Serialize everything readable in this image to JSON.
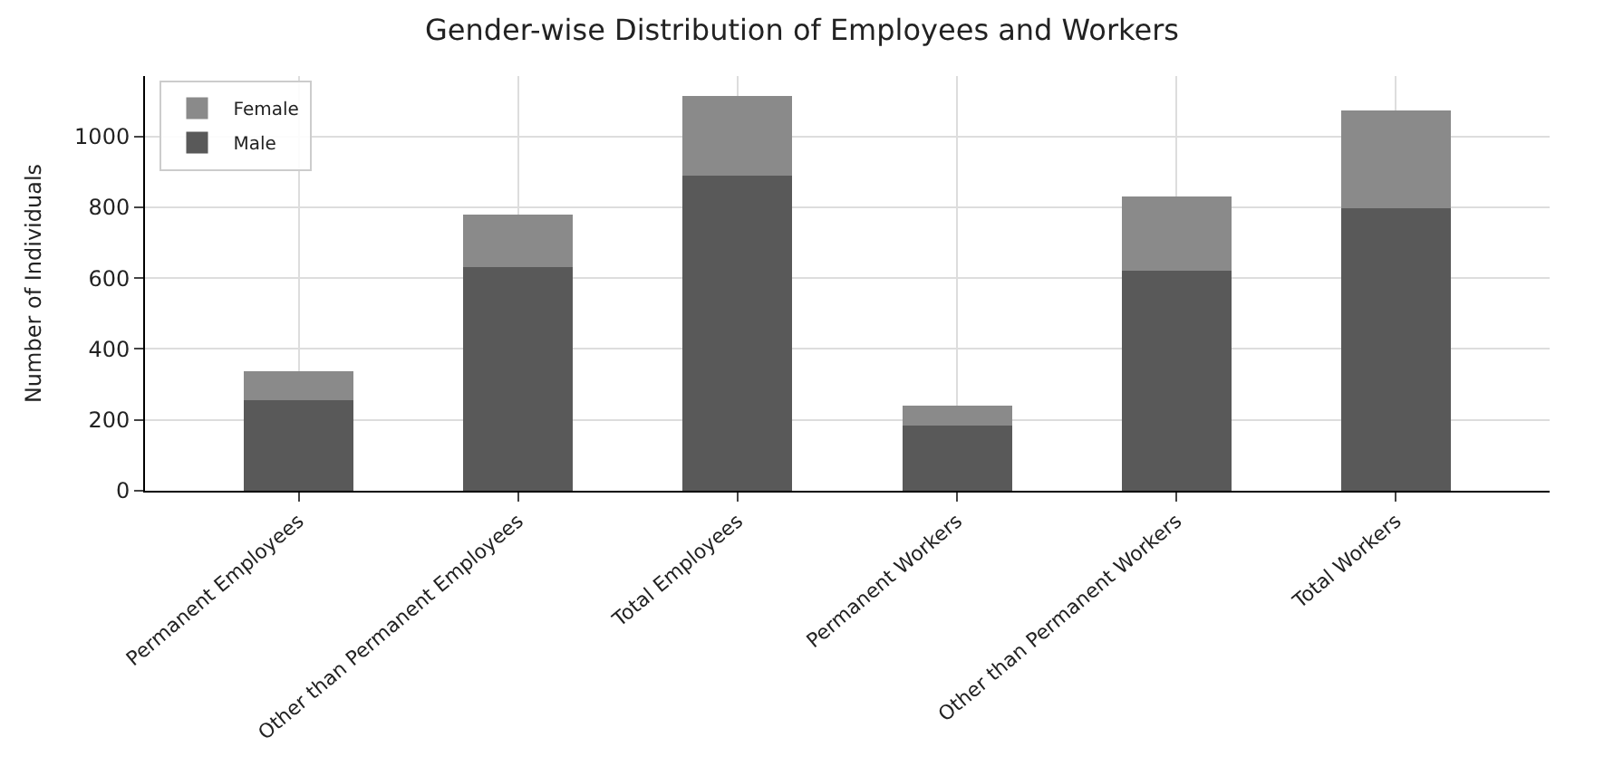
{
  "chart_data": {
    "type": "bar",
    "title": "Gender-wise Distribution of Employees and Workers",
    "ylabel": "Number of Individuals",
    "categories": [
      "Permanent Employees",
      "Other than Permanent Employees",
      "Total Employees",
      "Permanent Workers",
      "Other than Permanent Workers",
      "Total Workers"
    ],
    "series": [
      {
        "name": "Male",
        "color": "#595959",
        "values": [
          255,
          632,
          890,
          185,
          620,
          797
        ]
      },
      {
        "name": "Female",
        "color": "#8a8a8a",
        "values": [
          83,
          146,
          223,
          55,
          209,
          275
        ]
      }
    ],
    "stacked": true,
    "ylim": [
      0,
      1170
    ],
    "yticks": [
      0,
      200,
      400,
      600,
      800,
      1000
    ],
    "grid": true,
    "legend": "top left"
  }
}
